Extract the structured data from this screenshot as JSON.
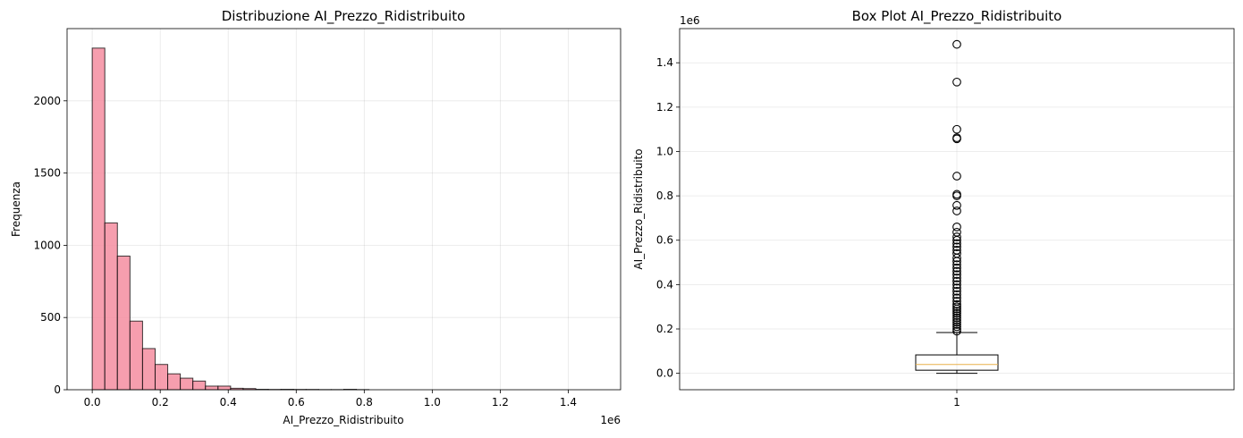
{
  "chart_data": [
    {
      "type": "histogram",
      "title": "Distribuzione AI_Prezzo_Ridistribuito",
      "xlabel": "AI_Prezzo_Ridistribuito",
      "ylabel": "Frequenza",
      "x_offset_label": "1e6",
      "xlim": [
        -0.074,
        1.554
      ],
      "ylim": [
        0,
        2500
      ],
      "x_scale": 1000000,
      "bin_start": 0.0,
      "bin_width": 0.037,
      "counts": [
        2365,
        1155,
        925,
        475,
        285,
        175,
        110,
        80,
        60,
        25,
        25,
        10,
        8,
        3,
        2,
        3,
        2,
        2,
        1,
        1,
        3,
        1,
        0,
        0,
        0,
        0,
        0,
        0,
        0,
        0,
        0,
        0,
        0,
        0,
        0,
        0,
        0,
        0,
        0,
        0
      ],
      "xticks": [
        0.0,
        0.2,
        0.4,
        0.6,
        0.8,
        1.0,
        1.2,
        1.4
      ],
      "xtick_labels": [
        "0.0",
        "0.2",
        "0.4",
        "0.6",
        "0.8",
        "1.0",
        "1.2",
        "1.4"
      ],
      "yticks": [
        0,
        500,
        1000,
        1500,
        2000
      ],
      "ytick_labels": [
        "0",
        "500",
        "1000",
        "1500",
        "2000"
      ],
      "bar_color": "#f48da0",
      "grid": true
    },
    {
      "type": "box",
      "title": "Box Plot AI_Prezzo_Ridistribuito",
      "ylabel": "AI_Prezzo_Ridistribuito",
      "y_offset_label": "1e6",
      "ylim": [
        -0.074,
        1.554
      ],
      "categories": [
        "1"
      ],
      "box": {
        "whisker_low": 0.0,
        "q1": 0.014,
        "median": 0.04,
        "q3": 0.083,
        "whisker_high": 0.184
      },
      "outliers": [
        1.483,
        1.313,
        1.1,
        1.062,
        1.057,
        0.889,
        0.807,
        0.8,
        0.757,
        0.732,
        0.66,
        0.636,
        0.615,
        0.6,
        0.585,
        0.57,
        0.555,
        0.54,
        0.52,
        0.505,
        0.49,
        0.475,
        0.46,
        0.445,
        0.43,
        0.415,
        0.4,
        0.385,
        0.37,
        0.355,
        0.34,
        0.325,
        0.31,
        0.3,
        0.29,
        0.28,
        0.27,
        0.26,
        0.25,
        0.24,
        0.23,
        0.22,
        0.21,
        0.2,
        0.19
      ],
      "yticks": [
        0.0,
        0.2,
        0.4,
        0.6,
        0.8,
        1.0,
        1.2,
        1.4
      ],
      "ytick_labels": [
        "0.0",
        "0.2",
        "0.4",
        "0.6",
        "0.8",
        "1.0",
        "1.2",
        "1.4"
      ],
      "median_color": "#e8b04a",
      "grid": true
    }
  ]
}
